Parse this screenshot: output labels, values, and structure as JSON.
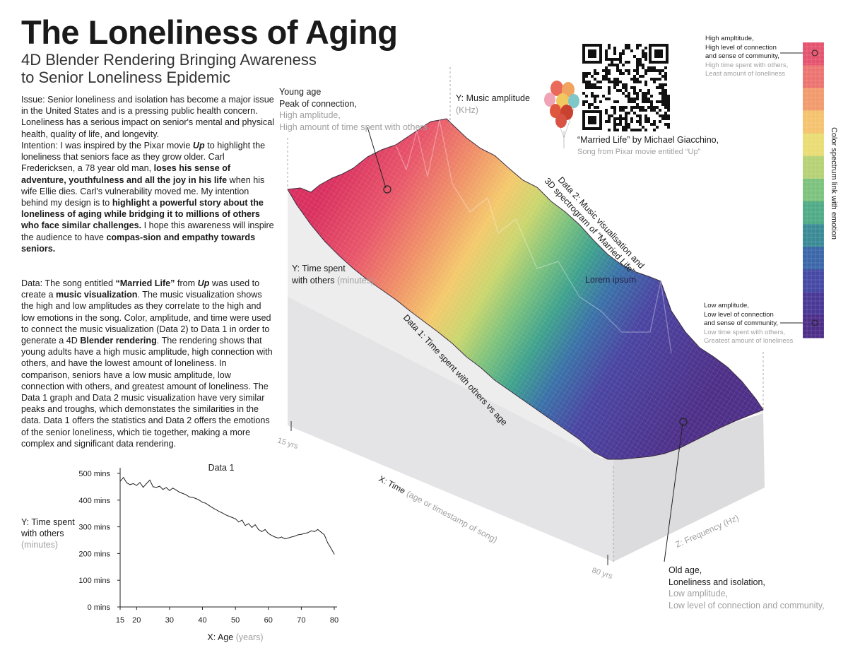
{
  "title": "The Loneliness of Aging",
  "subtitle": "4D Blender Rendering Bringing Awareness to Senior Loneliness Epidemic",
  "paragraphs": {
    "issue": "Issue: Senior loneliness and isolation has become a major issue in the United States and is a pressing public health concern. Loneliness has a serious impact on senior's mental and physical health, quality of life, and longevity.",
    "intention": {
      "p1": "Intention: I was inspired by the Pixar movie ",
      "up": "Up",
      "p2": " to highlight the loneliness that seniors face as they grow older. Carl Fredericksen, a 78 year old man, ",
      "b1": "loses his sense of adventure, youthfulness and all the joy in his life",
      "p3": " when his wife Ellie dies. Carl's vulnerability moved me. My intention behind my design is to ",
      "b2": "highlight a powerful story about the loneliness of aging while bridging it to millions of others who face similar challenges.",
      "p4": " I hope this awareness will inspire the audience to have ",
      "b3": "compas-sion and empathy towards seniors."
    },
    "data": {
      "p1": "Data: The song entitled ",
      "b1": "“Married Life”",
      "p2": " from ",
      "up": "Up",
      "p3": " was used to create a ",
      "b2": "music visualization",
      "p4": ". The music visualization shows the high and low amplitudes as they correlate to the high and low emotions in the song. Color, amplitude, and time were used to connect the music visualization (Data 2) to Data 1 in order to generate a 4D ",
      "b3": "Blender rendering",
      "p5": ". The rendering shows that young adults have a high music amplitude, high connection with others, and have the lowest amount of loneliness. In comparison, seniors have a low music amplitude, low connection with others, and greatest amount of loneliness. The Data 1 graph and Data 2 music visualization have very similar peaks and troughs, which demonstates the similarities in the data. Data 1 offers the statistics and Data 2 offers the emotions of the senior loneliness, which tie together, making a more complex and significant data rendering."
    }
  },
  "annotations": {
    "young_age": [
      "Young age",
      "Peak of connection,"
    ],
    "young_age_grey": [
      "High amplitude,",
      "High amount of time spent with others"
    ],
    "y_music": "Y: Music amplitude",
    "y_music_unit": "(KHz)",
    "song_credit": "“Married Life” by Michael Giacchino,",
    "song_sub": "Song from Pixar movie entitled “Up”",
    "data2_label": [
      "Data 2: Music visualisation and",
      "3D spectrogram of “Married Life”"
    ],
    "lorem": "Lorem ipsum",
    "y_time": [
      "Y: Time spent",
      "with others"
    ],
    "y_time_unit": "(minutes)",
    "data1_label": "Data 1: Time spent with others vs age",
    "x_time": "X: Time",
    "x_time_grey": "(age or timestamp of song)",
    "z_freq": "Z: Frequency (Hz)",
    "yrs15": "15 yrs",
    "yrs80": "80 yrs",
    "old_age": [
      "Old age,",
      "Loneliness and isolation,"
    ],
    "old_age_grey": [
      "Low amplitude,",
      "Low level of connection and community,"
    ]
  },
  "legend": {
    "high": [
      "High ampltitude,",
      "High level of connection",
      "and sense of community,"
    ],
    "high_grey": [
      "High time spent with others,",
      "Least amount of loneliness"
    ],
    "low": [
      "Low amplitude,",
      "Low level of connection",
      "and sense of community,"
    ],
    "low_grey": [
      "Low time spent with others,",
      "Greatest amount of loneliness"
    ],
    "axis_label": "Color spectrum link with emotion",
    "colors": [
      "#e5536f",
      "#ec7370",
      "#f29a6c",
      "#f5c36e",
      "#e9dc73",
      "#b5d276",
      "#7cc27d",
      "#4fab86",
      "#3a8a96",
      "#3b66a9",
      "#4549a4",
      "#4a3896",
      "#4c2e88"
    ]
  },
  "chart_data": {
    "type": "line",
    "title": "Data 1",
    "xlabel": "X: Age",
    "xlabel_unit": "(years)",
    "ylabel": [
      "Y: Time spent",
      "with others"
    ],
    "ylabel_unit": "(minutes)",
    "xlim": [
      15,
      80
    ],
    "ylim": [
      0,
      500
    ],
    "x_ticks": [
      15,
      20,
      30,
      40,
      50,
      60,
      70,
      80
    ],
    "y_ticks": [
      "0 mins",
      "100 mins",
      "200 mins",
      "300 mins",
      "400 mins",
      "500 mins"
    ],
    "x": [
      15,
      16,
      17,
      18,
      19,
      20,
      21,
      22,
      23,
      24,
      25,
      26,
      27,
      28,
      29,
      30,
      31,
      32,
      33,
      34,
      35,
      36,
      37,
      38,
      39,
      40,
      41,
      42,
      43,
      44,
      45,
      46,
      47,
      48,
      49,
      50,
      51,
      52,
      53,
      54,
      55,
      56,
      57,
      58,
      59,
      60,
      61,
      62,
      63,
      64,
      65,
      66,
      67,
      68,
      69,
      70,
      71,
      72,
      73,
      74,
      75,
      76,
      77,
      78,
      79,
      80
    ],
    "values": [
      470,
      485,
      465,
      458,
      462,
      455,
      466,
      448,
      462,
      475,
      450,
      448,
      452,
      440,
      447,
      436,
      445,
      438,
      430,
      425,
      420,
      412,
      410,
      406,
      400,
      392,
      388,
      380,
      372,
      365,
      358,
      352,
      345,
      340,
      335,
      330,
      318,
      325,
      305,
      312,
      298,
      308,
      290,
      282,
      290,
      275,
      268,
      262,
      258,
      262,
      255,
      258,
      262,
      265,
      270,
      272,
      275,
      278,
      285,
      282,
      290,
      280,
      270,
      240,
      220,
      198
    ]
  }
}
